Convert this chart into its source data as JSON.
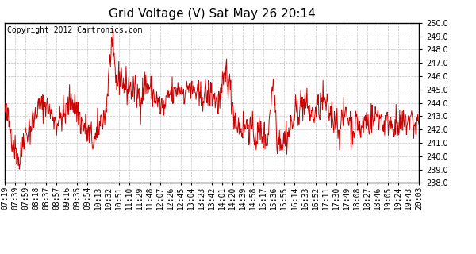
{
  "title": "Grid Voltage (V) Sat May 26 20:14",
  "copyright": "Copyright 2012 Cartronics.com",
  "ylim": [
    238.0,
    250.0
  ],
  "yticks": [
    238.0,
    239.0,
    240.0,
    241.0,
    242.0,
    243.0,
    244.0,
    245.0,
    246.0,
    247.0,
    248.0,
    249.0,
    250.0
  ],
  "xtick_labels": [
    "07:19",
    "07:39",
    "07:59",
    "08:18",
    "08:37",
    "08:57",
    "09:16",
    "09:35",
    "09:54",
    "10:13",
    "10:32",
    "10:51",
    "11:10",
    "11:29",
    "11:48",
    "12:07",
    "12:26",
    "12:45",
    "13:04",
    "13:23",
    "13:42",
    "14:01",
    "14:20",
    "14:39",
    "14:58",
    "15:17",
    "15:36",
    "15:55",
    "16:14",
    "16:33",
    "16:52",
    "17:11",
    "17:30",
    "17:49",
    "18:08",
    "18:27",
    "18:46",
    "19:05",
    "19:24",
    "19:43",
    "20:03"
  ],
  "line_color": "#cc0000",
  "bg_color": "#ffffff",
  "grid_color": "#aaaaaa",
  "title_fontsize": 11,
  "tick_fontsize": 7,
  "copyright_fontsize": 7
}
